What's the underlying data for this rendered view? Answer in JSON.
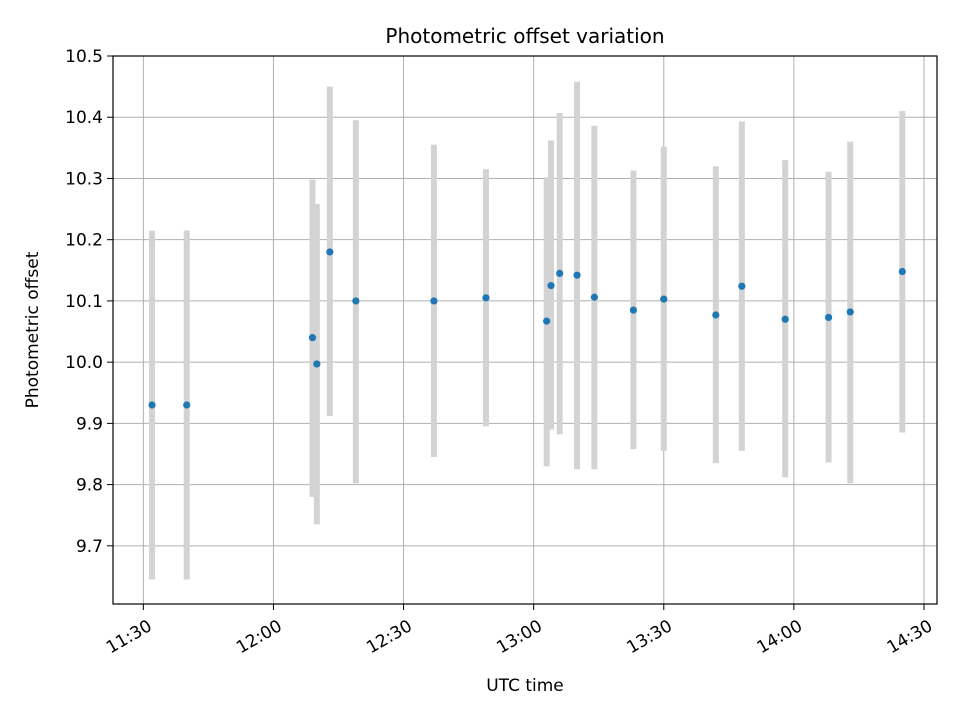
{
  "chart_data": {
    "type": "scatter",
    "title": "Photometric offset variation",
    "xlabel": "UTC time",
    "ylabel": "Photometric offset",
    "xlim": [
      "11:23",
      "14:33"
    ],
    "ylim": [
      9.605,
      10.5
    ],
    "x_ticks": [
      "11:30",
      "12:00",
      "12:30",
      "13:00",
      "13:30",
      "14:00",
      "14:30"
    ],
    "y_ticks": [
      "9.7",
      "9.8",
      "9.9",
      "10.0",
      "10.1",
      "10.2",
      "10.3",
      "10.4",
      "10.5"
    ],
    "grid": true,
    "colors": {
      "point": "#1f77b4",
      "errorbar": "#d3d3d3",
      "grid": "#b0b0b0"
    },
    "series": [
      {
        "points": [
          {
            "x": "11:32",
            "y": 9.93,
            "ylo": 9.645,
            "yhi": 10.215
          },
          {
            "x": "11:40",
            "y": 9.93,
            "ylo": 9.645,
            "yhi": 10.215
          },
          {
            "x": "12:09",
            "y": 10.04,
            "ylo": 9.78,
            "yhi": 10.298
          },
          {
            "x": "12:10",
            "y": 9.997,
            "ylo": 9.735,
            "yhi": 10.258
          },
          {
            "x": "12:13",
            "y": 10.18,
            "ylo": 9.912,
            "yhi": 10.45
          },
          {
            "x": "12:19",
            "y": 10.1,
            "ylo": 9.802,
            "yhi": 10.395
          },
          {
            "x": "12:37",
            "y": 10.1,
            "ylo": 9.845,
            "yhi": 10.355
          },
          {
            "x": "12:49",
            "y": 10.105,
            "ylo": 9.895,
            "yhi": 10.315
          },
          {
            "x": "13:03",
            "y": 10.067,
            "ylo": 9.83,
            "yhi": 10.302
          },
          {
            "x": "13:04",
            "y": 10.125,
            "ylo": 9.89,
            "yhi": 10.362
          },
          {
            "x": "13:06",
            "y": 10.145,
            "ylo": 9.882,
            "yhi": 10.407
          },
          {
            "x": "13:10",
            "y": 10.142,
            "ylo": 9.825,
            "yhi": 10.458
          },
          {
            "x": "13:14",
            "y": 10.106,
            "ylo": 9.825,
            "yhi": 10.386
          },
          {
            "x": "13:23",
            "y": 10.085,
            "ylo": 9.858,
            "yhi": 10.313
          },
          {
            "x": "13:30",
            "y": 10.103,
            "ylo": 9.855,
            "yhi": 10.352
          },
          {
            "x": "13:42",
            "y": 10.077,
            "ylo": 9.835,
            "yhi": 10.32
          },
          {
            "x": "13:48",
            "y": 10.124,
            "ylo": 9.855,
            "yhi": 10.393
          },
          {
            "x": "13:58",
            "y": 10.07,
            "ylo": 9.812,
            "yhi": 10.33
          },
          {
            "x": "14:08",
            "y": 10.073,
            "ylo": 9.836,
            "yhi": 10.311
          },
          {
            "x": "14:13",
            "y": 10.082,
            "ylo": 9.802,
            "yhi": 10.36
          },
          {
            "x": "14:25",
            "y": 10.148,
            "ylo": 9.885,
            "yhi": 10.41
          }
        ]
      }
    ]
  }
}
